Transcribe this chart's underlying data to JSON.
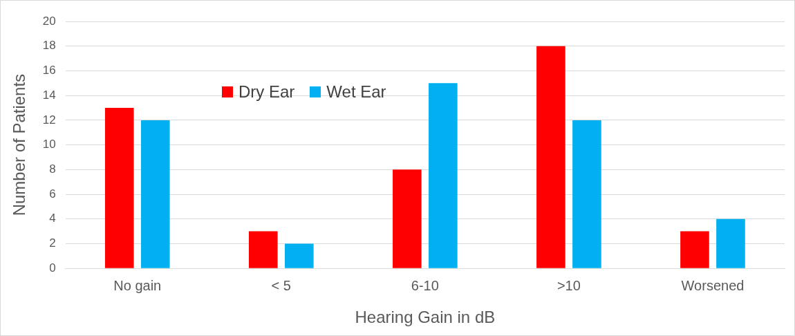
{
  "chart_data": {
    "type": "bar",
    "xlabel": "Hearing Gain in dB",
    "ylabel": "Number of Patients",
    "categories": [
      "No gain",
      "< 5",
      "6-10",
      ">10",
      "Worsened"
    ],
    "series": [
      {
        "name": "Dry Ear",
        "color": "#ff0000",
        "values": [
          13,
          3,
          8,
          18,
          3
        ]
      },
      {
        "name": "Wet Ear",
        "color": "#00b0f0",
        "values": [
          12,
          2,
          15,
          12,
          4
        ]
      }
    ],
    "ylim": [
      0,
      20
    ],
    "yticks": [
      0,
      2,
      4,
      6,
      8,
      10,
      12,
      14,
      16,
      18,
      20
    ],
    "grid": "y",
    "legend": "top left"
  }
}
